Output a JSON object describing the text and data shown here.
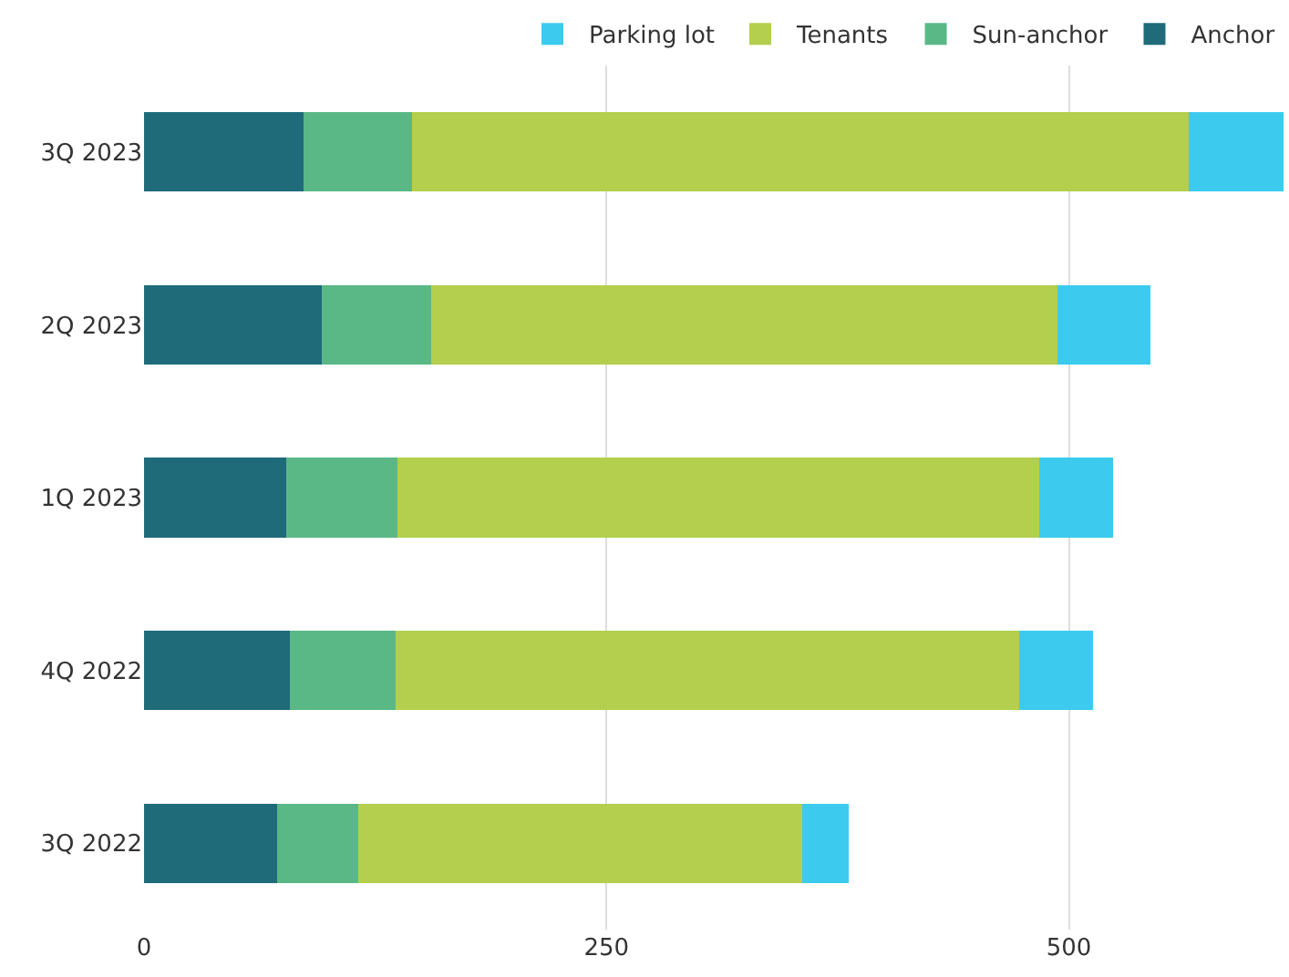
{
  "chart_data": {
    "type": "bar",
    "orientation": "horizontal",
    "stacked": true,
    "categories": [
      "3Q 2023",
      "2Q 2023",
      "1Q 2023",
      "4Q 2022",
      "3Q 2022"
    ],
    "series": [
      {
        "name": "Anchor",
        "color": "#1f6b7a",
        "values": [
          86,
          96,
          77,
          79,
          72
        ]
      },
      {
        "name": "Sun-anchor",
        "color": "#5ab887",
        "values": [
          59,
          59,
          60,
          57,
          44
        ]
      },
      {
        "name": "Tenants",
        "color": "#b3cf4d",
        "values": [
          420,
          339,
          347,
          337,
          240
        ]
      },
      {
        "name": "Parking lot",
        "color": "#3ccbef",
        "values": [
          51,
          50,
          40,
          40,
          25
        ]
      }
    ],
    "xlim": [
      0,
      617
    ],
    "xticks": [
      0,
      250,
      500
    ],
    "grid": "x",
    "legend": "top right"
  }
}
